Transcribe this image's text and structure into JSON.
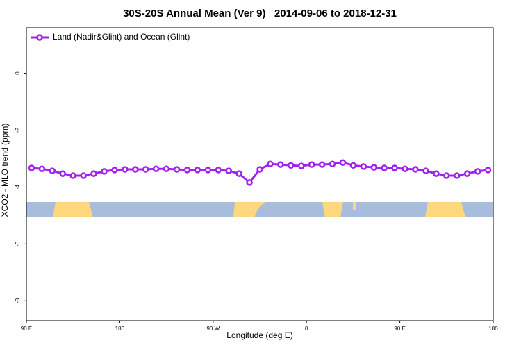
{
  "chart_data": {
    "type": "line",
    "title": "30S-20S Annual Mean (Ver 9)   2014-09-06 to 2018-12-31",
    "x_label": "Longitude (deg E)",
    "y_label": "XCO2 - MLO trend (ppm)",
    "x": [
      95,
      105,
      115,
      125,
      135,
      145,
      155,
      165,
      175,
      185,
      195,
      205,
      215,
      225,
      235,
      245,
      255,
      265,
      275,
      285,
      295,
      305,
      315,
      325,
      335,
      345,
      355,
      365,
      375,
      385,
      395,
      405,
      415,
      425,
      435,
      445,
      455,
      465,
      475,
      485,
      495,
      505,
      515,
      525,
      535
    ],
    "series": [
      {
        "name": "Land (Nadir&Glint) and Ocean (Glint)",
        "color": "#a020f0",
        "values": [
          -3.33,
          -3.36,
          -3.43,
          -3.53,
          -3.6,
          -3.6,
          -3.53,
          -3.45,
          -3.4,
          -3.38,
          -3.38,
          -3.38,
          -3.36,
          -3.36,
          -3.38,
          -3.4,
          -3.4,
          -3.4,
          -3.4,
          -3.43,
          -3.53,
          -3.84,
          -3.38,
          -3.19,
          -3.21,
          -3.24,
          -3.26,
          -3.21,
          -3.21,
          -3.19,
          -3.14,
          -3.24,
          -3.28,
          -3.31,
          -3.33,
          -3.33,
          -3.36,
          -3.38,
          -3.43,
          -3.53,
          -3.6,
          -3.6,
          -3.53,
          -3.45,
          -3.4
        ]
      }
    ],
    "xlim": [
      90,
      540
    ],
    "xticks": [
      {
        "value": 90,
        "label": "90 E"
      },
      180,
      {
        "value": 270,
        "label": "90 W"
      },
      {
        "value": 360,
        "label": "0"
      },
      {
        "value": 450,
        "label": "90 E"
      },
      {
        "value": 540,
        "label": "180"
      }
    ],
    "ylim": [
      -8.7,
      1.6
    ],
    "yticks": [
      0,
      -2,
      -4,
      -6,
      -8
    ],
    "legend": "top-left"
  }
}
